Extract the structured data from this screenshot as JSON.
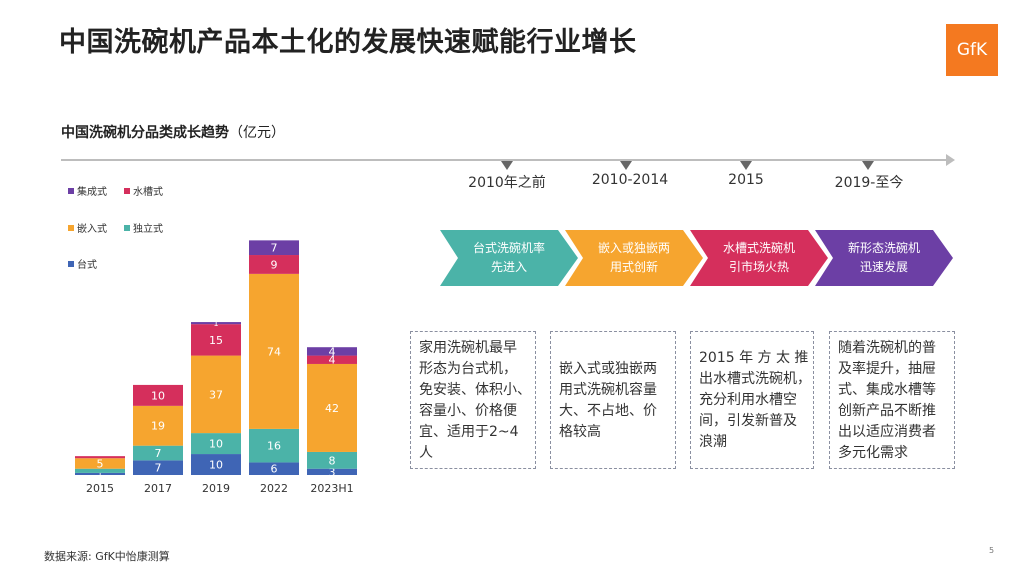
{
  "title": "中国洗碗机产品本土化的发展快速赋能行业增长",
  "logo_text": "GfK",
  "chart_title": "中国洗碗机分品类成长趋势",
  "chart_unit": "（亿元）",
  "colors": {
    "台式": "#3f65b5",
    "独立式": "#4bb3a8",
    "嵌入式": "#f6a52f",
    "水槽式": "#d52f5c",
    "集成式": "#6c3fa5"
  },
  "chart_data": {
    "type": "bar",
    "stacked": true,
    "categories": [
      "2015",
      "2017",
      "2019",
      "2022",
      "2023H1"
    ],
    "series": [
      {
        "name": "台式",
        "values": [
          1,
          7,
          10,
          6,
          3
        ],
        "labels": [
          "1",
          "7",
          "10",
          "6",
          "3"
        ]
      },
      {
        "name": "独立式",
        "values": [
          2,
          7,
          10,
          16,
          8
        ],
        "labels": [
          "",
          "7",
          "10",
          "16",
          "8"
        ]
      },
      {
        "name": "嵌入式",
        "values": [
          5,
          19,
          37,
          74,
          42
        ],
        "labels": [
          "5",
          "19",
          "37",
          "74",
          "42"
        ]
      },
      {
        "name": "水槽式",
        "values": [
          1,
          10,
          15,
          9,
          4
        ],
        "labels": [
          "",
          "10",
          "15",
          "9",
          "4"
        ]
      },
      {
        "name": "集成式",
        "values": [
          0,
          0,
          1,
          7,
          4
        ],
        "labels": [
          "",
          "",
          "1",
          "7",
          "4"
        ]
      }
    ],
    "legend_rows": [
      [
        "集成式",
        "水槽式"
      ],
      [
        "嵌入式",
        "独立式"
      ],
      [
        "台式"
      ]
    ],
    "legend_position": "top-left",
    "ylim": [
      0,
      125
    ],
    "grid": false
  },
  "timeline": {
    "periods": [
      "2010年之前",
      "2010-2014",
      "2015",
      "2019-至今"
    ],
    "stages": [
      {
        "line1": "台式洗碗机率",
        "line2": "先进入",
        "color": "#4bb3a8"
      },
      {
        "line1": "嵌入或独嵌两",
        "line2": "用式创新",
        "color": "#f6a52f"
      },
      {
        "line1": "水槽式洗碗机",
        "line2": "引市场火热",
        "color": "#d52f5c"
      },
      {
        "line1": "新形态洗碗机",
        "line2": "迅速发展",
        "color": "#6c3fa5"
      }
    ],
    "boxes": [
      {
        "lines": [
          "家用洗碗机最早",
          "形态为台式机，",
          "免安装、体积小、",
          "容量小、价格便",
          "宜、适用于2~4",
          "人"
        ]
      },
      {
        "lines": [
          "嵌入式或独嵌两",
          "用式洗碗机容量",
          "大、不占地、价",
          "格较高"
        ]
      },
      {
        "lines": [
          "2015 年 方 太 推",
          "出水槽式洗碗机，",
          "充分利用水槽空",
          "间，引发新普及",
          "浪潮"
        ]
      },
      {
        "lines": [
          "随着洗碗机的普",
          "及率提升，抽屉",
          "式、集成水槽等",
          "创新产品不断推",
          "出以适应消费者",
          "多元化需求"
        ]
      }
    ]
  },
  "source": "数据来源: GfK中怡康测算",
  "page_number": "5"
}
